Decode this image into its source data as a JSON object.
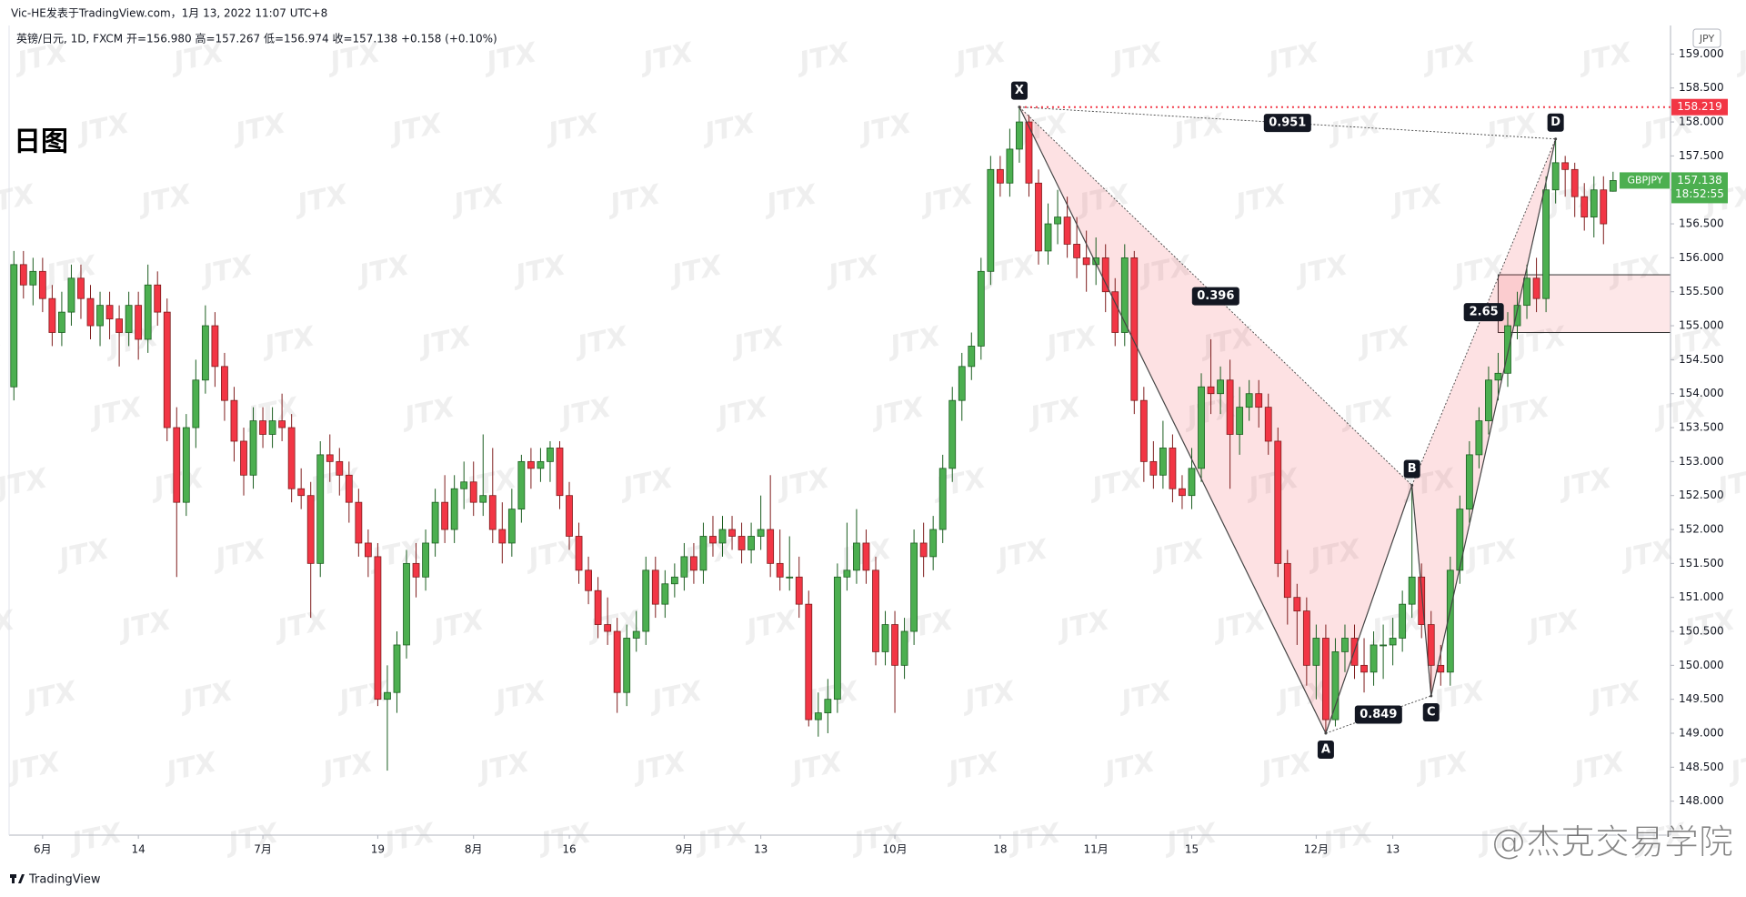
{
  "header": {
    "publisher": "Vic-HE发表于TradingView.com，1月 13, 2022 11:07 UTC+8",
    "symbol_line": "英镑/日元, 1D, FXCM  开=156.980  高=157.267  低=156.974  收=157.138  +0.158 (+0.10%)",
    "timeframe": "日图",
    "currency": "JPY"
  },
  "watermark": "JTX",
  "brand": "@杰克交易学院",
  "footer": "TradingView",
  "chart_data": {
    "type": "candlestick",
    "symbol": "GBPJPY",
    "countdown": "18:52:55",
    "up_color": "#4caf50",
    "down_color": "#f23645",
    "grid": false,
    "xlim": [
      -0.5,
      173
    ],
    "ylim": [
      147.5,
      159.3
    ],
    "xticks": [
      {
        "value": 3,
        "label": "6月"
      },
      {
        "value": 13,
        "label": "14"
      },
      {
        "value": 26,
        "label": "7月"
      },
      {
        "value": 38,
        "label": "19"
      },
      {
        "value": 48,
        "label": "8月"
      },
      {
        "value": 58,
        "label": "16"
      },
      {
        "value": 70,
        "label": "9月"
      },
      {
        "value": 78,
        "label": "13"
      },
      {
        "value": 92,
        "label": "10月"
      },
      {
        "value": 103,
        "label": "18"
      },
      {
        "value": 113,
        "label": "11月"
      },
      {
        "value": 123,
        "label": "15"
      },
      {
        "value": 136,
        "label": "12月"
      },
      {
        "value": 144,
        "label": "13"
      }
    ],
    "yticks": [
      {
        "value": 148,
        "label": "148.000"
      },
      {
        "value": 148.5,
        "label": "148.500"
      },
      {
        "value": 149,
        "label": "149.000"
      },
      {
        "value": 149.5,
        "label": "149.500"
      },
      {
        "value": 150,
        "label": "150.000"
      },
      {
        "value": 150.5,
        "label": "150.500"
      },
      {
        "value": 151,
        "label": "151.000"
      },
      {
        "value": 151.5,
        "label": "151.500"
      },
      {
        "value": 152,
        "label": "152.000"
      },
      {
        "value": 152.5,
        "label": "152.500"
      },
      {
        "value": 153,
        "label": "153.000"
      },
      {
        "value": 153.5,
        "label": "153.500"
      },
      {
        "value": 154,
        "label": "154.000"
      },
      {
        "value": 154.5,
        "label": "154.500"
      },
      {
        "value": 155,
        "label": "155.000"
      },
      {
        "value": 155.5,
        "label": "155.500"
      },
      {
        "value": 156,
        "label": "156.000"
      },
      {
        "value": 156.5,
        "label": "156.500"
      },
      {
        "value": 157,
        "label": "157.000"
      },
      {
        "value": 157.5,
        "label": "157.500"
      },
      {
        "value": 158,
        "label": "158.000"
      },
      {
        "value": 158.5,
        "label": "158.500"
      },
      {
        "value": 159,
        "label": "159.000"
      }
    ],
    "level": 158.219,
    "zone": {
      "from": 155,
      "low": 154.9,
      "high": 155.75
    },
    "pattern": {
      "points": [
        {
          "label": "X",
          "index": 105,
          "price": 158.22
        },
        {
          "label": "A",
          "index": 137,
          "price": 149.0
        },
        {
          "label": "B",
          "index": 146,
          "price": 152.65
        },
        {
          "label": "C",
          "index": 148,
          "price": 149.55
        },
        {
          "label": "D",
          "index": 161,
          "price": 157.75
        }
      ],
      "ratios": {
        "XD": 0.951,
        "XB": 0.396,
        "AC": 0.849,
        "BD": 2.65
      }
    },
    "ohlc": [
      [
        154.1,
        156.1,
        153.9,
        155.9
      ],
      [
        155.9,
        156.1,
        155.4,
        155.6
      ],
      [
        155.6,
        156.0,
        155.3,
        155.8
      ],
      [
        155.8,
        156.0,
        155.2,
        155.4
      ],
      [
        155.4,
        155.6,
        154.7,
        154.9
      ],
      [
        154.9,
        155.5,
        154.7,
        155.2
      ],
      [
        155.2,
        155.9,
        155.0,
        155.7
      ],
      [
        155.7,
        155.9,
        155.1,
        155.4
      ],
      [
        155.4,
        155.6,
        154.8,
        155.0
      ],
      [
        155.0,
        155.5,
        154.7,
        155.3
      ],
      [
        155.3,
        155.5,
        154.8,
        155.1
      ],
      [
        155.1,
        155.3,
        154.4,
        154.9
      ],
      [
        154.9,
        155.5,
        154.7,
        155.3
      ],
      [
        155.3,
        155.5,
        154.5,
        154.8
      ],
      [
        154.8,
        155.9,
        154.6,
        155.6
      ],
      [
        155.6,
        155.8,
        155.0,
        155.2
      ],
      [
        155.2,
        155.4,
        153.3,
        153.5
      ],
      [
        153.5,
        153.8,
        151.3,
        152.4
      ],
      [
        152.4,
        153.7,
        152.2,
        153.5
      ],
      [
        153.5,
        154.5,
        153.2,
        154.2
      ],
      [
        154.2,
        155.3,
        154.0,
        155.0
      ],
      [
        155.0,
        155.2,
        154.1,
        154.4
      ],
      [
        154.4,
        154.6,
        153.6,
        153.9
      ],
      [
        153.9,
        154.1,
        153.0,
        153.3
      ],
      [
        153.3,
        153.5,
        152.5,
        152.8
      ],
      [
        152.8,
        153.8,
        152.6,
        153.6
      ],
      [
        153.6,
        153.8,
        153.2,
        153.4
      ],
      [
        153.4,
        153.8,
        153.2,
        153.6
      ],
      [
        153.6,
        154.0,
        153.3,
        153.5
      ],
      [
        153.5,
        153.7,
        152.4,
        152.6
      ],
      [
        152.6,
        152.9,
        152.3,
        152.5
      ],
      [
        152.5,
        152.7,
        150.7,
        151.5
      ],
      [
        151.5,
        153.3,
        151.3,
        153.1
      ],
      [
        153.1,
        153.4,
        152.7,
        153.0
      ],
      [
        153.0,
        153.2,
        152.5,
        152.8
      ],
      [
        152.8,
        153.0,
        152.1,
        152.4
      ],
      [
        152.4,
        152.6,
        151.6,
        151.8
      ],
      [
        151.8,
        152.0,
        151.3,
        151.6
      ],
      [
        151.6,
        151.8,
        149.4,
        149.5
      ],
      [
        149.5,
        150.0,
        148.45,
        149.6
      ],
      [
        149.6,
        150.5,
        149.3,
        150.3
      ],
      [
        150.3,
        151.7,
        150.1,
        151.5
      ],
      [
        151.5,
        151.8,
        151.0,
        151.3
      ],
      [
        151.3,
        152.0,
        151.1,
        151.8
      ],
      [
        151.8,
        152.6,
        151.6,
        152.4
      ],
      [
        152.4,
        152.8,
        151.8,
        152.0
      ],
      [
        152.0,
        152.8,
        151.8,
        152.6
      ],
      [
        152.6,
        153.0,
        152.3,
        152.7
      ],
      [
        152.7,
        153.0,
        152.2,
        152.4
      ],
      [
        152.4,
        153.4,
        152.2,
        152.5
      ],
      [
        152.5,
        153.2,
        151.8,
        152.0
      ],
      [
        152.0,
        152.4,
        151.5,
        151.8
      ],
      [
        151.8,
        152.6,
        151.6,
        152.3
      ],
      [
        152.3,
        153.1,
        152.1,
        153.0
      ],
      [
        153.0,
        153.2,
        152.6,
        152.9
      ],
      [
        152.9,
        153.2,
        152.7,
        153.0
      ],
      [
        153.0,
        153.3,
        152.7,
        153.2
      ],
      [
        153.2,
        153.3,
        152.3,
        152.5
      ],
      [
        152.5,
        152.7,
        151.7,
        151.9
      ],
      [
        151.9,
        152.1,
        151.2,
        151.4
      ],
      [
        151.4,
        151.6,
        150.9,
        151.1
      ],
      [
        151.1,
        151.3,
        150.4,
        150.6
      ],
      [
        150.6,
        151.0,
        150.3,
        150.5
      ],
      [
        150.5,
        150.7,
        149.3,
        149.6
      ],
      [
        149.6,
        150.6,
        149.4,
        150.4
      ],
      [
        150.4,
        150.8,
        150.2,
        150.5
      ],
      [
        150.5,
        151.6,
        150.3,
        151.4
      ],
      [
        151.4,
        151.6,
        150.7,
        150.9
      ],
      [
        150.9,
        151.4,
        150.7,
        151.2
      ],
      [
        151.2,
        151.5,
        151.0,
        151.3
      ],
      [
        151.3,
        151.8,
        151.1,
        151.6
      ],
      [
        151.6,
        151.8,
        151.2,
        151.4
      ],
      [
        151.4,
        152.1,
        151.2,
        151.9
      ],
      [
        151.9,
        152.2,
        151.6,
        151.8
      ],
      [
        151.8,
        152.2,
        151.6,
        152.0
      ],
      [
        152.0,
        152.2,
        151.7,
        151.9
      ],
      [
        151.9,
        152.1,
        151.5,
        151.7
      ],
      [
        151.7,
        152.1,
        151.5,
        151.9
      ],
      [
        151.9,
        152.5,
        151.7,
        152.0
      ],
      [
        152.0,
        152.8,
        151.3,
        151.5
      ],
      [
        151.5,
        152.0,
        151.1,
        151.3
      ],
      [
        151.3,
        151.9,
        151.1,
        151.3
      ],
      [
        151.3,
        151.6,
        150.7,
        150.9
      ],
      [
        150.9,
        151.1,
        149.1,
        149.2
      ],
      [
        149.2,
        149.6,
        148.95,
        149.3
      ],
      [
        149.3,
        149.8,
        149.0,
        149.5
      ],
      [
        149.5,
        151.5,
        149.3,
        151.3
      ],
      [
        151.3,
        152.1,
        151.1,
        151.4
      ],
      [
        151.4,
        152.3,
        151.2,
        151.8
      ],
      [
        151.8,
        152.0,
        151.2,
        151.4
      ],
      [
        151.4,
        151.6,
        150.0,
        150.2
      ],
      [
        150.2,
        150.8,
        150.0,
        150.6
      ],
      [
        150.6,
        150.8,
        149.3,
        150.0
      ],
      [
        150.0,
        150.7,
        149.8,
        150.5
      ],
      [
        150.5,
        152.0,
        150.3,
        151.8
      ],
      [
        151.8,
        152.1,
        151.3,
        151.6
      ],
      [
        151.6,
        152.2,
        151.4,
        152.0
      ],
      [
        152.0,
        153.1,
        151.8,
        152.9
      ],
      [
        152.9,
        154.1,
        152.7,
        153.9
      ],
      [
        153.9,
        154.6,
        153.6,
        154.4
      ],
      [
        154.4,
        154.9,
        154.2,
        154.7
      ],
      [
        154.7,
        156.0,
        154.5,
        155.8
      ],
      [
        155.8,
        157.5,
        155.6,
        157.3
      ],
      [
        157.3,
        157.5,
        156.9,
        157.1
      ],
      [
        157.1,
        157.9,
        156.9,
        157.6
      ],
      [
        157.6,
        158.22,
        157.4,
        158.0
      ],
      [
        158.0,
        158.1,
        156.9,
        157.1
      ],
      [
        157.1,
        157.3,
        155.9,
        156.1
      ],
      [
        156.1,
        156.8,
        155.9,
        156.5
      ],
      [
        156.5,
        157.0,
        156.2,
        156.6
      ],
      [
        156.6,
        156.9,
        156.0,
        156.2
      ],
      [
        156.2,
        156.6,
        155.7,
        156.0
      ],
      [
        156.0,
        156.4,
        155.5,
        155.9
      ],
      [
        155.9,
        156.3,
        155.6,
        156.0
      ],
      [
        156.0,
        156.2,
        155.2,
        155.5
      ],
      [
        155.5,
        155.7,
        154.7,
        154.9
      ],
      [
        154.9,
        156.2,
        154.7,
        156.0
      ],
      [
        156.0,
        156.1,
        153.7,
        153.9
      ],
      [
        153.9,
        154.1,
        152.7,
        153.0
      ],
      [
        153.0,
        153.3,
        152.6,
        152.8
      ],
      [
        152.8,
        153.6,
        152.6,
        153.2
      ],
      [
        153.2,
        153.4,
        152.4,
        152.6
      ],
      [
        152.6,
        152.8,
        152.3,
        152.5
      ],
      [
        152.5,
        153.2,
        152.3,
        152.9
      ],
      [
        152.9,
        154.3,
        152.7,
        154.1
      ],
      [
        154.1,
        154.8,
        153.7,
        154.0
      ],
      [
        154.0,
        154.4,
        153.7,
        154.2
      ],
      [
        154.2,
        154.5,
        152.6,
        153.4
      ],
      [
        153.4,
        154.1,
        153.1,
        153.8
      ],
      [
        153.8,
        154.2,
        153.6,
        154.0
      ],
      [
        154.0,
        154.2,
        153.5,
        153.8
      ],
      [
        153.8,
        154.0,
        153.1,
        153.3
      ],
      [
        153.3,
        153.5,
        151.3,
        151.5
      ],
      [
        151.5,
        151.7,
        150.6,
        151.0
      ],
      [
        151.0,
        151.2,
        150.3,
        150.8
      ],
      [
        150.8,
        151.0,
        149.7,
        150.0
      ],
      [
        150.0,
        150.6,
        149.5,
        150.4
      ],
      [
        150.4,
        150.6,
        149.0,
        149.2
      ],
      [
        149.2,
        150.4,
        149.1,
        150.2
      ],
      [
        150.2,
        150.6,
        149.9,
        150.4
      ],
      [
        150.4,
        150.6,
        149.8,
        150.0
      ],
      [
        150.0,
        150.4,
        149.6,
        149.9
      ],
      [
        149.9,
        150.5,
        149.7,
        150.3
      ],
      [
        150.3,
        150.6,
        149.8,
        150.3
      ],
      [
        150.3,
        150.7,
        150.0,
        150.4
      ],
      [
        150.4,
        151.1,
        150.2,
        150.9
      ],
      [
        150.9,
        152.65,
        150.7,
        151.3
      ],
      [
        151.3,
        151.5,
        150.4,
        150.6
      ],
      [
        150.6,
        150.8,
        149.55,
        150.0
      ],
      [
        150.0,
        150.3,
        149.7,
        149.9
      ],
      [
        149.9,
        151.6,
        149.7,
        151.4
      ],
      [
        151.4,
        152.5,
        151.2,
        152.3
      ],
      [
        152.3,
        153.3,
        152.1,
        153.1
      ],
      [
        153.1,
        153.8,
        152.9,
        153.6
      ],
      [
        153.6,
        154.4,
        153.4,
        154.2
      ],
      [
        154.2,
        154.6,
        153.9,
        154.3
      ],
      [
        154.3,
        155.2,
        154.1,
        155.0
      ],
      [
        155.0,
        155.5,
        154.8,
        155.3
      ],
      [
        155.3,
        155.9,
        155.1,
        155.7
      ],
      [
        155.7,
        156.0,
        155.2,
        155.4
      ],
      [
        155.4,
        157.2,
        155.2,
        157.0
      ],
      [
        157.0,
        157.75,
        156.8,
        157.4
      ],
      [
        157.4,
        157.5,
        156.9,
        157.3
      ],
      [
        157.3,
        157.4,
        156.6,
        156.9
      ],
      [
        156.9,
        157.1,
        156.4,
        156.6
      ],
      [
        156.6,
        157.2,
        156.3,
        157.0
      ],
      [
        157.0,
        157.2,
        156.2,
        156.5
      ],
      [
        156.98,
        157.267,
        156.974,
        157.138
      ]
    ]
  }
}
